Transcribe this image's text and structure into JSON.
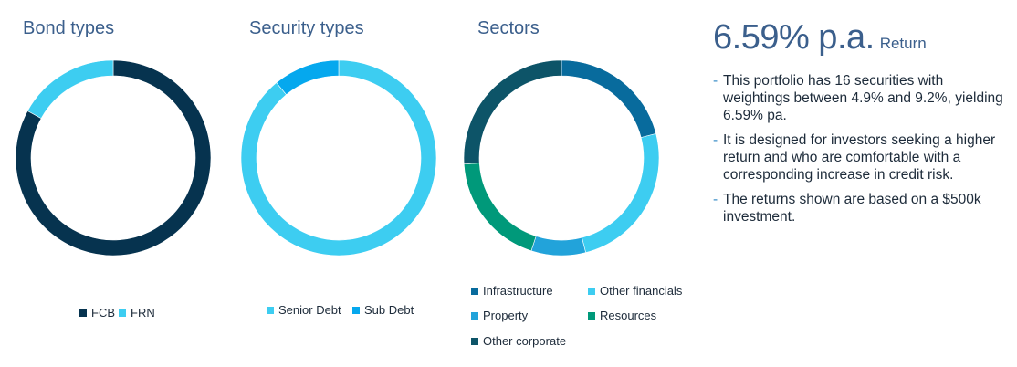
{
  "colors": {
    "navy": "#06334f",
    "light_blue": "#3dcdf1",
    "bright_blue": "#05a8ee",
    "infrastructure": "#086b9d",
    "other_financials": "#3dcdf1",
    "property": "#22a3da",
    "resources": "#00997a",
    "other_corporate": "#0d5468",
    "title": "#3b5f8c"
  },
  "chart_data": [
    {
      "type": "pie",
      "title": "Bond types",
      "donut": true,
      "categories": [
        "FCB",
        "FRN"
      ],
      "values": [
        83,
        17
      ],
      "colors": [
        "#06334f",
        "#3dcdf1"
      ],
      "start_angle_deg": 0,
      "legend": "bottom"
    },
    {
      "type": "pie",
      "title": "Security types",
      "donut": true,
      "categories": [
        "Senior Debt",
        "Sub Debt"
      ],
      "values": [
        89,
        11
      ],
      "colors": [
        "#3dcdf1",
        "#05a8ee"
      ],
      "start_angle_deg": 0,
      "legend": "bottom"
    },
    {
      "type": "pie",
      "title": "Sectors",
      "donut": true,
      "categories": [
        "Infrastructure",
        "Other financials",
        "Property",
        "Resources",
        "Other corporate"
      ],
      "values": [
        21,
        25,
        9,
        19,
        26
      ],
      "colors": [
        "#086b9d",
        "#3dcdf1",
        "#22a3da",
        "#00997a",
        "#0d5468"
      ],
      "start_angle_deg": 0,
      "legend": "bottom"
    }
  ],
  "summary": {
    "return_value": "6.59% p.a.",
    "return_label": "Return",
    "bullets": [
      "This portfolio has 16 securities with weightings between 4.9% and 9.2%, yielding 6.59% pa.",
      "It is designed for investors seeking a higher return and who are comfortable with a corresponding increase in credit risk.",
      "The returns shown are based on a $500k investment."
    ],
    "bullet_marker": "-"
  }
}
